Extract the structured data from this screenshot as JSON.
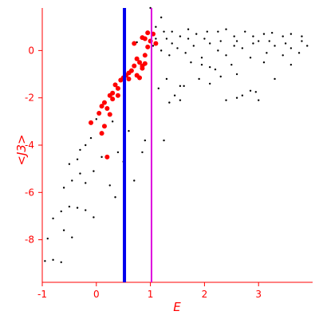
{
  "chart_data": {
    "type": "scatter",
    "xlabel": "E",
    "ylabel": "<J3>",
    "xlim": [
      -1,
      4
    ],
    "ylim": [
      -9.8,
      1.8
    ],
    "x_ticks": [
      -1,
      0,
      1,
      2,
      3
    ],
    "x_tick_labels": [
      "-1",
      "0",
      "1",
      "2",
      "3"
    ],
    "y_ticks": [
      0,
      -2,
      -4,
      -6,
      -8
    ],
    "y_tick_labels": [
      "0",
      "-2",
      "-4",
      "-6",
      "-8"
    ],
    "grid": false,
    "colors": {
      "axes": "#ff0000",
      "black_points": "#000000",
      "red_points": "#ff0000",
      "line_blue": "#0000ee",
      "line_magenta": "#dd00dd"
    },
    "vertical_lines": [
      {
        "x": 0.52,
        "color": "#0000ee"
      },
      {
        "x": 1.02,
        "color": "#dd00dd"
      }
    ],
    "series": [
      {
        "values_black": [
          [
            -0.95,
            -8.9
          ],
          [
            -0.8,
            -8.85
          ],
          [
            -0.65,
            -8.95
          ],
          [
            -0.9,
            -7.95
          ],
          [
            -0.6,
            -7.6
          ],
          [
            -0.45,
            -7.9
          ],
          [
            -0.8,
            -7.1
          ],
          [
            -0.65,
            -6.8
          ],
          [
            -0.5,
            -6.6
          ],
          [
            -0.35,
            -6.65
          ],
          [
            -0.2,
            -6.75
          ],
          [
            -0.05,
            -7.05
          ],
          [
            -0.6,
            -5.8
          ],
          [
            -0.45,
            -5.5
          ],
          [
            -0.3,
            -5.2
          ],
          [
            -0.5,
            -4.8
          ],
          [
            -0.35,
            -4.6
          ],
          [
            -0.3,
            -4.2
          ],
          [
            -0.2,
            -4.0
          ],
          [
            -0.1,
            -3.7
          ],
          [
            -0.2,
            -5.6
          ],
          [
            -0.05,
            -5.1
          ],
          [
            0.1,
            -4.5
          ],
          [
            0.25,
            -5.7
          ],
          [
            0.35,
            -6.2
          ],
          [
            0.5,
            -4.7
          ],
          [
            0.4,
            -4.3
          ],
          [
            0.7,
            -5.5
          ],
          [
            0.85,
            -4.3
          ],
          [
            0.15,
            -3.2
          ],
          [
            0.3,
            -3.0
          ],
          [
            0.0,
            -2.9
          ],
          [
            -0.1,
            -3.1
          ],
          [
            0.6,
            -3.4
          ],
          [
            0.9,
            -3.8
          ],
          [
            1.25,
            -3.8
          ],
          [
            1.35,
            -2.2
          ],
          [
            1.45,
            -1.9
          ],
          [
            1.55,
            -2.1
          ],
          [
            1.15,
            -1.6
          ],
          [
            1.3,
            -1.2
          ],
          [
            1.55,
            -1.5
          ],
          [
            1.62,
            -1.5
          ],
          [
            1.9,
            -1.2
          ],
          [
            2.1,
            -1.4
          ],
          [
            2.3,
            -1.1
          ],
          [
            2.6,
            -1.0
          ],
          [
            2.4,
            -2.1
          ],
          [
            2.6,
            -2.0
          ],
          [
            2.7,
            -1.9
          ],
          [
            2.85,
            -1.7
          ],
          [
            2.95,
            -1.75
          ],
          [
            3.0,
            -2.1
          ],
          [
            3.3,
            -1.2
          ],
          [
            2.1,
            -0.7
          ],
          [
            2.2,
            -0.8
          ],
          [
            1.75,
            -0.5
          ],
          [
            1.95,
            -0.6
          ],
          [
            2.5,
            -0.6
          ],
          [
            3.1,
            -0.5
          ],
          [
            3.6,
            -0.6
          ],
          [
            0.75,
            0.35
          ],
          [
            0.85,
            0.55
          ],
          [
            1.0,
            1.8
          ],
          [
            1.1,
            1.0
          ],
          [
            1.2,
            1.4
          ],
          [
            1.25,
            0.8
          ],
          [
            1.3,
            0.5
          ],
          [
            1.4,
            0.8
          ],
          [
            1.55,
            0.6
          ],
          [
            1.7,
            0.9
          ],
          [
            1.85,
            0.7
          ],
          [
            2.05,
            0.8
          ],
          [
            2.25,
            0.8
          ],
          [
            2.4,
            0.9
          ],
          [
            2.55,
            0.6
          ],
          [
            2.75,
            0.8
          ],
          [
            2.9,
            0.6
          ],
          [
            3.1,
            0.7
          ],
          [
            3.25,
            0.75
          ],
          [
            3.45,
            0.6
          ],
          [
            3.6,
            0.7
          ],
          [
            3.8,
            0.6
          ],
          [
            1.05,
            0.2
          ],
          [
            1.2,
            0.0
          ],
          [
            1.35,
            -0.2
          ],
          [
            1.5,
            0.1
          ],
          [
            1.65,
            -0.1
          ],
          [
            1.8,
            0.2
          ],
          [
            1.95,
            -0.3
          ],
          [
            2.1,
            0.3
          ],
          [
            2.25,
            0.0
          ],
          [
            2.4,
            -0.2
          ],
          [
            2.55,
            0.2
          ],
          [
            2.7,
            0.1
          ],
          [
            2.85,
            -0.3
          ],
          [
            3.0,
            0.4
          ],
          [
            3.15,
            -0.1
          ],
          [
            3.3,
            0.2
          ],
          [
            3.45,
            -0.2
          ],
          [
            3.6,
            0.1
          ],
          [
            3.75,
            -0.1
          ],
          [
            3.9,
            0.2
          ],
          [
            1.1,
            0.5
          ],
          [
            1.4,
            0.3
          ],
          [
            1.7,
            0.5
          ],
          [
            2.0,
            0.5
          ],
          [
            2.3,
            0.4
          ],
          [
            2.6,
            0.4
          ],
          [
            2.9,
            0.3
          ],
          [
            3.2,
            0.4
          ],
          [
            3.5,
            0.3
          ],
          [
            3.8,
            0.4
          ]
        ]
      },
      {
        "values_red": [
          [
            -0.1,
            -3.05
          ],
          [
            0.05,
            -2.65
          ],
          [
            0.1,
            -2.35
          ],
          [
            0.15,
            -2.2
          ],
          [
            0.2,
            -2.45
          ],
          [
            0.25,
            -1.9
          ],
          [
            0.1,
            -3.5
          ],
          [
            0.15,
            -3.2
          ],
          [
            0.25,
            -2.7
          ],
          [
            0.3,
            -2.05
          ],
          [
            0.35,
            -1.45
          ],
          [
            0.4,
            -1.6
          ],
          [
            0.45,
            -1.25
          ],
          [
            0.55,
            -1.05
          ],
          [
            0.6,
            -0.95
          ],
          [
            0.7,
            -0.65
          ],
          [
            0.75,
            -0.35
          ],
          [
            0.8,
            -0.5
          ],
          [
            0.85,
            -0.75
          ],
          [
            0.9,
            -0.2
          ],
          [
            0.95,
            0.15
          ],
          [
            0.65,
            -0.85
          ],
          [
            0.75,
            -1.05
          ],
          [
            0.85,
            -0.65
          ],
          [
            0.9,
            -0.55
          ],
          [
            1.0,
            0.4
          ],
          [
            1.05,
            0.7
          ],
          [
            0.85,
            0.55
          ],
          [
            0.95,
            0.75
          ],
          [
            0.2,
            -4.5
          ],
          [
            0.3,
            -1.8
          ],
          [
            0.4,
            -1.9
          ],
          [
            0.5,
            -1.15
          ],
          [
            0.6,
            -1.2
          ],
          [
            0.8,
            -1.15
          ],
          [
            1.1,
            0.3
          ],
          [
            0.7,
            0.3
          ],
          [
            0.9,
            0.5
          ]
        ]
      }
    ]
  }
}
